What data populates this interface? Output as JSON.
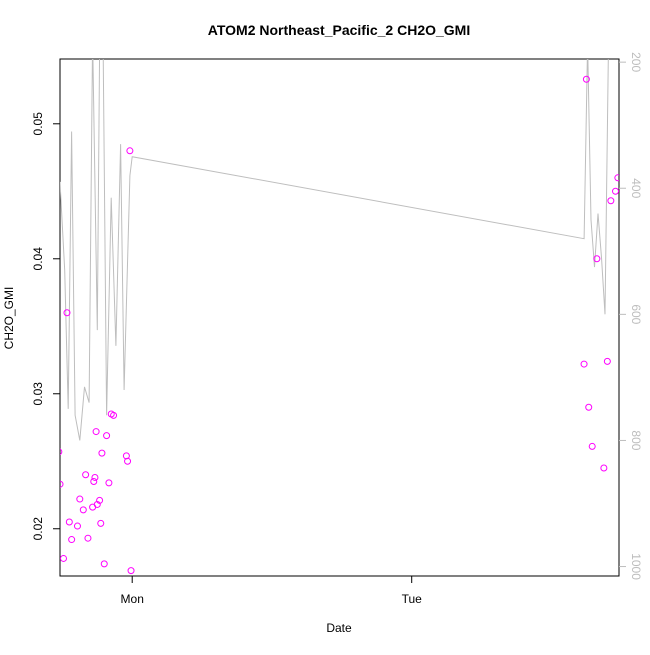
{
  "chart_data": {
    "type": "scatter",
    "title": "ATOM2 Northeast_Pacific_2 CH2O_GMI",
    "xlabel": "Date",
    "ylabel": "CH2O_GMI",
    "x_ticks": [
      "Mon",
      "Tue"
    ],
    "x_tick_values": [
      24,
      48
    ],
    "xlim": [
      17.8,
      65.8
    ],
    "y_ticks": [
      "0.02",
      "0.03",
      "0.04",
      "0.05"
    ],
    "y_tick_values": [
      0.02,
      0.03,
      0.04,
      0.05
    ],
    "ylim": [
      0.0165,
      0.0548
    ],
    "y2_ticks": [
      "200",
      "400",
      "600",
      "800",
      "1000"
    ],
    "y2_tick_values": [
      200,
      400,
      600,
      800,
      1000
    ],
    "y2lim": [
      1015,
      195
    ],
    "grid": false,
    "legend": "none",
    "colors": {
      "points": "#ff00ff",
      "line": "#bebebe",
      "axis": "#000000",
      "y2_axis": "#bdbdbd"
    },
    "series": [
      {
        "type": "scatter",
        "axis": "left",
        "x": [
          17.7,
          17.8,
          18.1,
          18.4,
          18.6,
          18.8,
          19.3,
          19.5,
          19.8,
          20.0,
          20.2,
          20.6,
          20.7,
          20.8,
          20.9,
          21.0,
          21.2,
          21.3,
          21.4,
          21.6,
          21.8,
          22.0,
          22.2,
          22.4,
          23.5,
          23.6,
          23.8,
          23.9,
          62.8,
          63.0,
          63.2,
          63.5,
          63.9,
          64.5,
          64.8,
          65.1,
          65.5,
          65.7
        ],
        "y": [
          0.0257,
          0.0233,
          0.0178,
          0.036,
          0.0205,
          0.0192,
          0.0202,
          0.0222,
          0.0214,
          0.024,
          0.0193,
          0.0216,
          0.0235,
          0.0238,
          0.0272,
          0.0218,
          0.0221,
          0.0204,
          0.0256,
          0.0174,
          0.0269,
          0.0234,
          0.0285,
          0.0284,
          0.0254,
          0.025,
          0.048,
          0.0169,
          0.0322,
          0.0533,
          0.029,
          0.0261,
          0.04,
          0.0245,
          0.0324,
          0.0443,
          0.045,
          0.046
        ]
      },
      {
        "type": "line",
        "axis": "right",
        "x": [
          17.8,
          18.2,
          18.5,
          18.8,
          19.1,
          19.5,
          19.9,
          20.3,
          20.6,
          21.0,
          21.2,
          21.5,
          21.8,
          22.2,
          22.6,
          23.0,
          23.3,
          23.6,
          23.8,
          24.0,
          62.8,
          63.1,
          63.4,
          63.7,
          64.0,
          64.3,
          64.6,
          64.9,
          65.2
        ],
        "y": [
          390,
          530,
          750,
          310,
          760,
          800,
          715,
          740,
          160,
          625,
          180,
          170,
          760,
          415,
          650,
          330,
          720,
          520,
          380,
          350,
          480,
          170,
          450,
          525,
          440,
          510,
          600,
          170,
          180
        ]
      }
    ]
  }
}
